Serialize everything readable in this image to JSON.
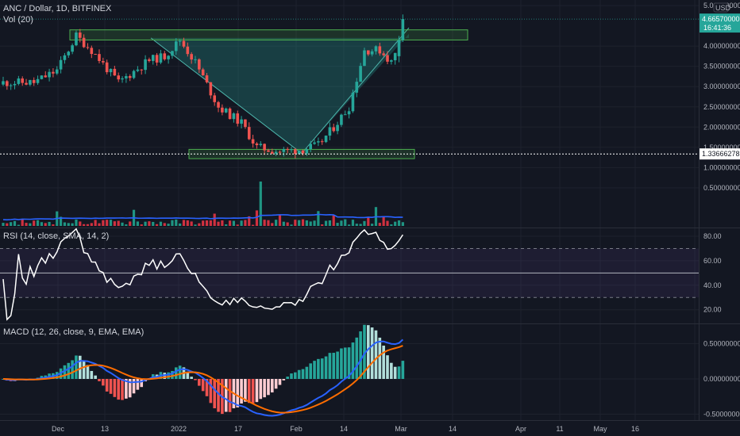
{
  "main_pane": {
    "title": "ANC / Dollar, 1D, BITFINEX",
    "volume_label": "Vol (20)",
    "currency_badge": "USD",
    "y_ticks": [
      "5.00000000",
      "4.00000000",
      "3.50000000",
      "3.00000000",
      "2.50000000",
      "2.00000000",
      "1.50000000",
      "1.00000000",
      "0.50000000"
    ],
    "last_price_tag": "4.66570000",
    "countdown_tag": "16:41:36",
    "crosshair_tag": "1.33666278"
  },
  "rsi_pane": {
    "title": "RSI (14, close, SMA, 14, 2)",
    "y_ticks": [
      "80.00",
      "60.00",
      "40.00",
      "20.00"
    ]
  },
  "macd_pane": {
    "title": "MACD (12, 26, close, 9, EMA, EMA)",
    "y_ticks": [
      "0.50000000",
      "0.00000000",
      "-0.50000000"
    ]
  },
  "x_axis": {
    "ticks": [
      "Dec",
      "13",
      "2022",
      "17",
      "Feb",
      "14",
      "Mar",
      "14",
      "Apr",
      "11",
      "May",
      "16"
    ]
  },
  "colors": {
    "background": "#131722",
    "up": "#26a69a",
    "down": "#ef5350",
    "vol_up": "#22ab94",
    "vol_down": "#f23645",
    "rsi_line": "#ffffff",
    "rsi_band": "#7e57c2",
    "macd_line": "#2962ff",
    "signal_line": "#ff6d00",
    "pattern_box": "#4caf50",
    "cup_fill": "#26a69a"
  },
  "chart_data": [
    {
      "type": "candlestick",
      "title": "ANC / Dollar, 1D, BITFINEX",
      "x_range": [
        "2021-11-20",
        "2022-05-18"
      ],
      "ylim": [
        0.1,
        5.0
      ],
      "candles": [],
      "annotations": {
        "resistance_zone": [
          4.2,
          4.4
        ],
        "support_zone": [
          1.25,
          1.45
        ],
        "crosshair_price": 1.33666278,
        "pattern": "rounded-bottom (V) with trendlines from 4.2 down to 1.35 and back up to 4.3"
      }
    },
    {
      "type": "bar",
      "title": "Vol (20)",
      "values": [],
      "ma_values": []
    },
    {
      "type": "line",
      "title": "RSI (14, close, SMA, 14, 2)",
      "ylim": [
        10,
        90
      ],
      "bands": [
        30,
        50,
        70
      ],
      "values": []
    },
    {
      "type": "line",
      "title": "MACD (12, 26, close, 9, EMA, EMA)",
      "ylim": [
        -0.55,
        0.65
      ],
      "series": [
        {
          "name": "MACD",
          "values": []
        },
        {
          "name": "Signal",
          "values": []
        }
      ],
      "histogram": []
    }
  ]
}
